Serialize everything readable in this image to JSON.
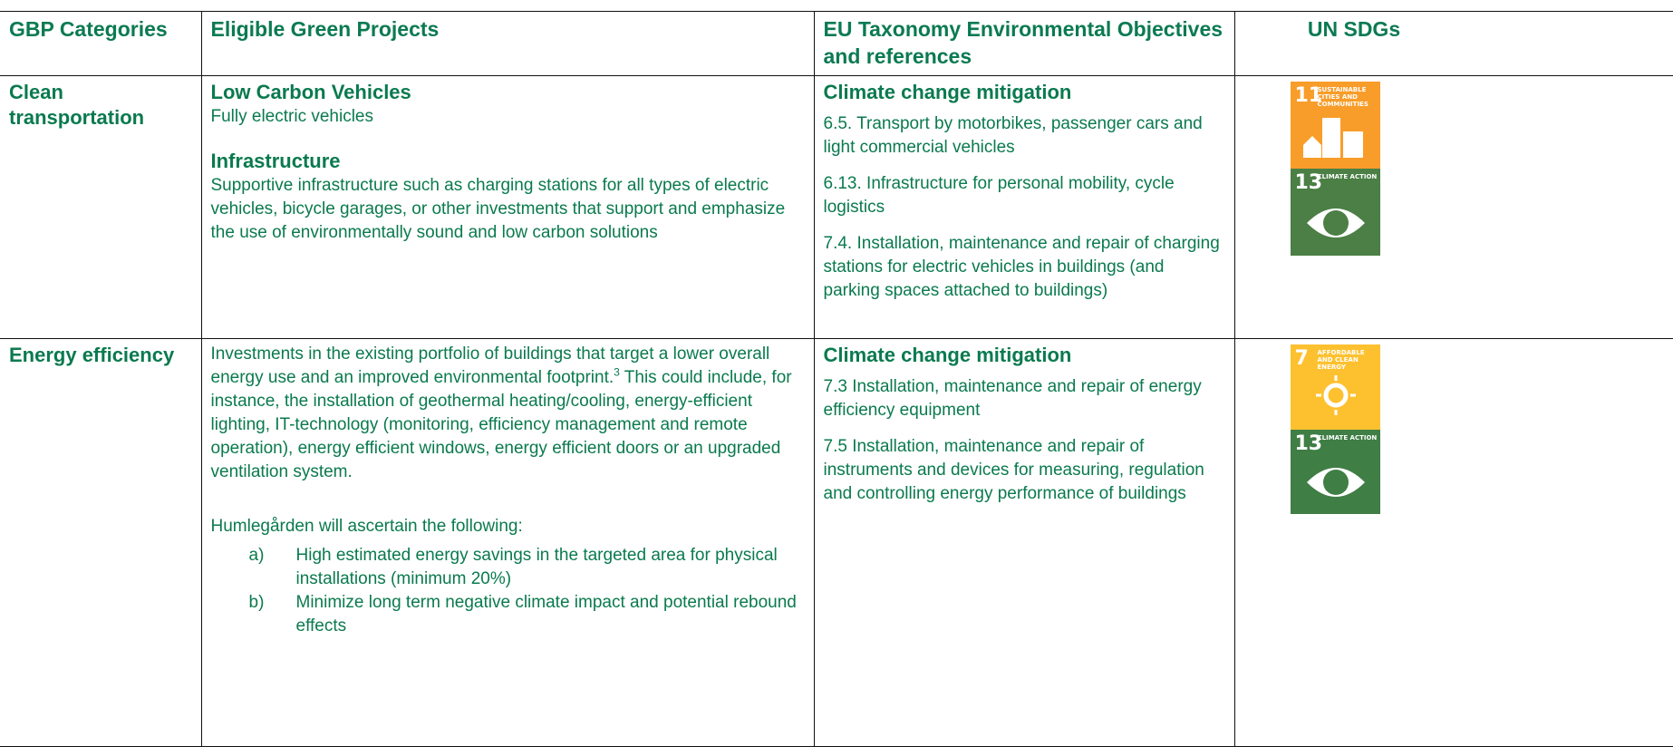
{
  "table": {
    "header": [
      "GBP Categories",
      "Eligible Green Projects",
      "EU Taxonomy Environmental Objectives and references",
      "UN SDGs"
    ],
    "rows": [
      {
        "category": "Clean transportation",
        "projects": [
          {
            "heading": "Low Carbon Vehicles",
            "text": "Fully electric vehicles"
          },
          {
            "heading": "Infrastructure",
            "text": "Supportive infrastructure such as charging stations for all types of electric vehicles, bicycle garages, or other investments that support and emphasize the use of environmentally sound and low carbon solutions"
          }
        ],
        "eu_heading": "Climate change mitigation",
        "eu_items": [
          "6.5.  Transport by motorbikes, passenger cars and light commercial vehicles",
          "6.13. Infrastructure for personal mobility, cycle logistics",
          "7.4. Installation, maintenance and repair of charging stations for electric vehicles in buildings (and parking spaces attached to buildings)"
        ],
        "sdgs": [
          {
            "number": "11",
            "label": "SUSTAINABLE CITIES AND COMMUNITIES"
          },
          {
            "number": "13",
            "label": "CLIMATE ACTION"
          }
        ]
      },
      {
        "category": "Energy efficiency",
        "text_before": "Investments in the existing portfolio of buildings that target a lower overall energy use and an improved environmental footprint.",
        "footnote": "3",
        "text_after": " This could include, for instance, the installation of geothermal heating/cooling, energy-efficient lighting, IT-technology (monitoring, efficiency management and remote operation), energy efficient windows, energy efficient doors or an upgraded ventilation system.",
        "intro": "Humlegården will ascertain the following:",
        "list": [
          {
            "marker": "a)",
            "text": "High estimated energy savings in the targeted area for physical installations (minimum 20%)"
          },
          {
            "marker": "b)",
            "text": "Minimize long term negative climate impact and potential rebound effects"
          }
        ],
        "eu_heading": "Climate change mitigation",
        "eu_items": [
          "7.3 Installation, maintenance and repair of energy efficiency equipment",
          "7.5 Installation, maintenance and repair of instruments and devices for measuring, regulation and controlling energy performance of buildings"
        ],
        "sdgs": [
          {
            "number": "7",
            "label": "AFFORDABLE AND CLEAN ENERGY"
          },
          {
            "number": "13",
            "label": "CLIMATE ACTION"
          }
        ]
      }
    ]
  }
}
